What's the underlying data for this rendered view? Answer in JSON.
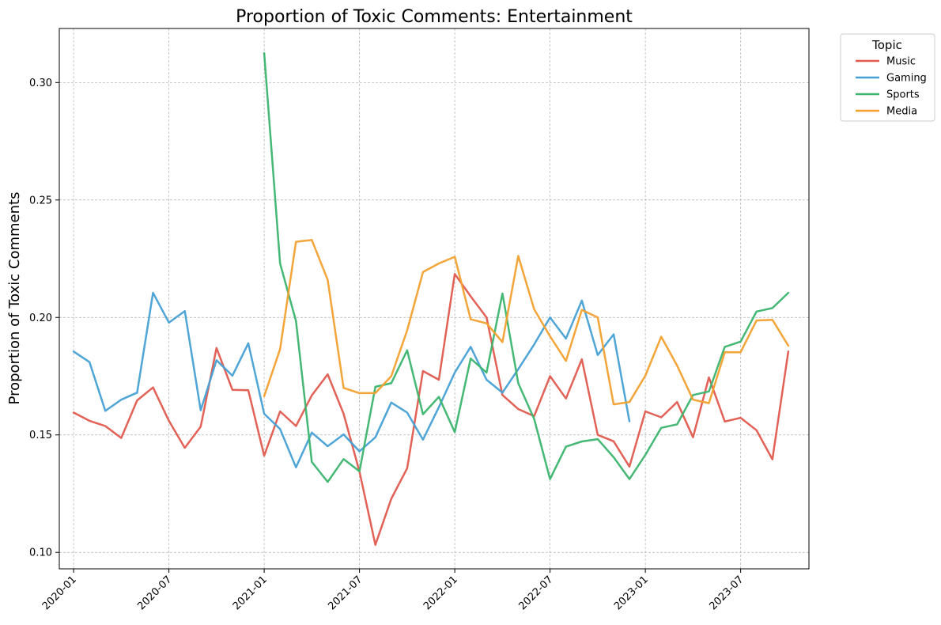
{
  "chart_data": {
    "type": "line",
    "title": "Proportion of Toxic Comments: Entertainment",
    "xlabel": "",
    "ylabel": "Proportion of Toxic Comments",
    "ylim": [
      0.093,
      0.323
    ],
    "xlim": [
      "2019-12",
      "2023-11"
    ],
    "yticks": [
      0.1,
      0.15,
      0.2,
      0.25,
      0.3
    ],
    "ytick_labels": [
      "0.10",
      "0.15",
      "0.20",
      "0.25",
      "0.30"
    ],
    "xticks": [
      "2020-01",
      "2020-07",
      "2021-01",
      "2021-07",
      "2022-01",
      "2022-07",
      "2023-01",
      "2023-07"
    ],
    "grid": true,
    "legend": {
      "title": "Topic",
      "placement": "outside-top-right"
    },
    "series": [
      {
        "name": "Music",
        "color": "#e05a4e",
        "start": "2020-01",
        "values": [
          0.1595,
          0.156,
          0.1538,
          0.1487,
          0.1647,
          0.1702,
          0.156,
          0.1445,
          0.1535,
          0.187,
          0.1692,
          0.169,
          0.1412,
          0.16,
          0.1538,
          0.1668,
          0.1758,
          0.159,
          0.1344,
          0.1032,
          0.1228,
          0.1358,
          0.1772,
          0.1735,
          0.2185,
          0.209,
          0.2,
          0.167,
          0.161,
          0.158,
          0.175,
          0.1655,
          0.1822,
          0.15,
          0.1473,
          0.1365,
          0.16,
          0.1575,
          0.164,
          0.149,
          0.1745,
          0.1557,
          0.1573,
          0.152,
          0.1396,
          0.1855
        ]
      },
      {
        "name": "Gaming",
        "color": "#46a0d4",
        "start": "2020-01",
        "values": [
          0.1855,
          0.181,
          0.1602,
          0.165,
          0.168,
          0.2105,
          0.1978,
          0.2027,
          0.1605,
          0.1818,
          0.1752,
          0.189,
          0.159,
          0.1525,
          0.1362,
          0.151,
          0.1452,
          0.1502,
          0.143,
          0.149,
          0.1638,
          0.1595,
          0.148,
          0.1618,
          0.1765,
          0.1875,
          0.1735,
          0.168,
          0.178,
          0.1885,
          0.2,
          0.191,
          0.2072,
          0.184,
          0.1928,
          0.1558
        ]
      },
      {
        "name": "Sports",
        "color": "#3cb46e",
        "start": "2021-01",
        "values": [
          0.3125,
          0.223,
          0.1985,
          0.1385,
          0.13,
          0.1397,
          0.1345,
          0.1705,
          0.172,
          0.186,
          0.1588,
          0.1662,
          0.1512,
          0.1825,
          0.1765,
          0.2102,
          0.172,
          0.1568,
          0.1312,
          0.145,
          0.1472,
          0.1482,
          0.1405,
          0.1312,
          0.1415,
          0.153,
          0.1545,
          0.167,
          0.1685,
          0.1875,
          0.1897,
          0.2025,
          0.204,
          0.2105
        ]
      },
      {
        "name": "Media",
        "color": "#f2a02e",
        "start": "2021-01",
        "values": [
          0.1665,
          0.1865,
          0.2322,
          0.233,
          0.216,
          0.17,
          0.1678,
          0.1678,
          0.175,
          0.1945,
          0.2193,
          0.223,
          0.2258,
          0.1992,
          0.1975,
          0.1895,
          0.2262,
          0.2035,
          0.192,
          0.1815,
          0.2032,
          0.2,
          0.163,
          0.164,
          0.1752,
          0.1918,
          0.1795,
          0.165,
          0.1635,
          0.1852,
          0.1852,
          0.1987,
          0.199,
          0.188
        ]
      }
    ]
  }
}
